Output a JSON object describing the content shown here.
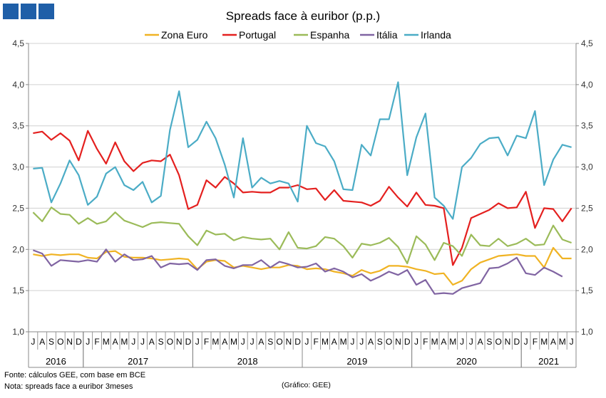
{
  "logo": {
    "name": "gee-logo"
  },
  "chart_data": {
    "type": "line",
    "title": "Spreads face à euribor (p.p.)",
    "ylim": [
      1.0,
      4.5
    ],
    "yticks": [
      "1,0",
      "1,5",
      "2,0",
      "2,5",
      "3,0",
      "3,5",
      "4,0",
      "4,5"
    ],
    "ytick_values": [
      1.0,
      1.5,
      2.0,
      2.5,
      3.0,
      3.5,
      4.0,
      4.5
    ],
    "month_labels": [
      "J",
      "A",
      "S",
      "O",
      "N",
      "D",
      "J",
      "F",
      "M",
      "A",
      "M",
      "J",
      "J",
      "A",
      "S",
      "O",
      "N",
      "D",
      "J",
      "F",
      "M",
      "A",
      "M",
      "J",
      "J",
      "A",
      "S",
      "O",
      "N",
      "D",
      "J",
      "F",
      "M",
      "A",
      "M",
      "J",
      "J",
      "A",
      "S",
      "O",
      "N",
      "D",
      "J",
      "F",
      "M",
      "A",
      "M",
      "J",
      "J",
      "A",
      "S",
      "O",
      "N",
      "D",
      "J",
      "F",
      "M",
      "A",
      "M",
      "J"
    ],
    "years": [
      {
        "label": "2016",
        "start": 0,
        "count": 6
      },
      {
        "label": "2017",
        "start": 6,
        "count": 12
      },
      {
        "label": "2018",
        "start": 18,
        "count": 12
      },
      {
        "label": "2019",
        "start": 30,
        "count": 12
      },
      {
        "label": "2020",
        "start": 42,
        "count": 12
      },
      {
        "label": "2021",
        "start": 54,
        "count": 6
      }
    ],
    "series": [
      {
        "name": "Zona Euro",
        "color": "#f0b323",
        "values": [
          1.94,
          1.92,
          1.94,
          1.93,
          1.94,
          1.94,
          1.9,
          1.89,
          1.97,
          1.98,
          1.91,
          1.9,
          1.9,
          1.89,
          1.87,
          1.88,
          1.89,
          1.88,
          1.76,
          1.85,
          1.87,
          1.86,
          1.78,
          1.8,
          1.78,
          1.76,
          1.78,
          1.78,
          1.81,
          1.8,
          1.76,
          1.77,
          1.76,
          1.73,
          1.71,
          1.68,
          1.75,
          1.71,
          1.74,
          1.8,
          1.8,
          1.79,
          1.76,
          1.74,
          1.7,
          1.71,
          1.57,
          1.62,
          1.76,
          1.84,
          1.88,
          1.92,
          1.93,
          1.94,
          1.92,
          1.92,
          1.78,
          2.02,
          1.89,
          1.89
        ]
      },
      {
        "name": "Portugal",
        "color": "#e4201f",
        "values": [
          3.41,
          3.43,
          3.33,
          3.41,
          3.32,
          3.08,
          3.44,
          3.22,
          3.04,
          3.3,
          3.07,
          2.95,
          3.05,
          3.08,
          3.07,
          3.15,
          2.9,
          2.49,
          2.54,
          2.84,
          2.75,
          2.88,
          2.8,
          2.69,
          2.7,
          2.69,
          2.69,
          2.75,
          2.75,
          2.78,
          2.73,
          2.74,
          2.6,
          2.72,
          2.59,
          2.58,
          2.57,
          2.53,
          2.59,
          2.76,
          2.63,
          2.52,
          2.69,
          2.54,
          2.53,
          2.5,
          1.81,
          2.02,
          2.38,
          2.43,
          2.48,
          2.56,
          2.5,
          2.51,
          2.7,
          2.26,
          2.5,
          2.49,
          2.34,
          2.5
        ]
      },
      {
        "name": "Espanha",
        "color": "#9bbb59",
        "values": [
          2.45,
          2.34,
          2.51,
          2.43,
          2.42,
          2.31,
          2.38,
          2.31,
          2.34,
          2.45,
          2.35,
          2.31,
          2.27,
          2.32,
          2.33,
          2.32,
          2.31,
          2.16,
          2.05,
          2.23,
          2.18,
          2.19,
          2.11,
          2.15,
          2.13,
          2.12,
          2.13,
          2.0,
          2.21,
          2.02,
          2.01,
          2.04,
          2.15,
          2.13,
          2.04,
          1.9,
          2.07,
          2.05,
          2.08,
          2.14,
          2.03,
          1.83,
          2.16,
          2.06,
          1.87,
          2.08,
          2.04,
          1.92,
          2.18,
          2.05,
          2.04,
          2.13,
          2.04,
          2.07,
          2.13,
          2.05,
          2.06,
          2.29,
          2.12,
          2.08
        ]
      },
      {
        "name": "Itália",
        "color": "#8064a2",
        "values": [
          1.99,
          1.95,
          1.8,
          1.87,
          1.86,
          1.85,
          1.87,
          1.85,
          2.0,
          1.85,
          1.94,
          1.87,
          1.88,
          1.92,
          1.78,
          1.83,
          1.82,
          1.83,
          1.75,
          1.87,
          1.88,
          1.8,
          1.77,
          1.81,
          1.81,
          1.87,
          1.78,
          1.85,
          1.82,
          1.78,
          1.79,
          1.83,
          1.73,
          1.77,
          1.73,
          1.66,
          1.7,
          1.62,
          1.67,
          1.73,
          1.69,
          1.75,
          1.57,
          1.63,
          1.46,
          1.47,
          1.46,
          1.53,
          1.56,
          1.59,
          1.77,
          1.78,
          1.83,
          1.9,
          1.71,
          1.69,
          1.78,
          1.73,
          1.67,
          null
        ]
      },
      {
        "name": "Irlanda",
        "color": "#4bacc6",
        "values": [
          2.98,
          2.99,
          2.57,
          2.8,
          3.08,
          2.9,
          2.54,
          2.64,
          2.92,
          3.0,
          2.78,
          2.72,
          2.82,
          2.57,
          2.65,
          3.45,
          3.92,
          3.24,
          3.33,
          3.55,
          3.35,
          3.03,
          2.63,
          3.35,
          2.75,
          2.87,
          2.8,
          2.83,
          2.8,
          2.58,
          3.5,
          3.29,
          3.25,
          3.07,
          2.73,
          2.72,
          3.27,
          3.14,
          3.58,
          3.58,
          4.03,
          2.9,
          3.36,
          3.65,
          2.63,
          2.53,
          2.37,
          3.0,
          3.11,
          3.28,
          3.35,
          3.36,
          3.14,
          3.38,
          3.35,
          3.68,
          2.78,
          3.09,
          3.27,
          3.24
        ]
      }
    ]
  },
  "footer": {
    "source": "Fonte: cálculos GEE, com base em BCE",
    "note": "Nota: spreads face a euribor 3meses",
    "credit": "(Gráfico: GEE)"
  }
}
